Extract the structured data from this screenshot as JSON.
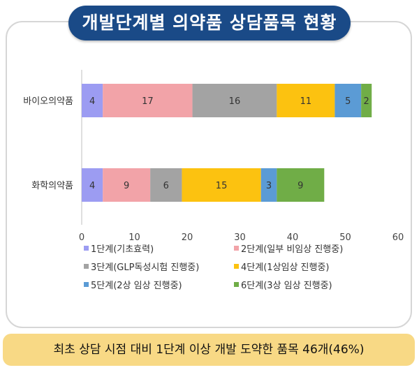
{
  "header": {
    "title": "개발단계별 의약품 상담품목 현황"
  },
  "footer": {
    "summary": "최초 상담 시점 대비 1단계 이상 개발 도약한 품목 46개(46%)"
  },
  "chart_data": {
    "type": "bar",
    "orientation": "horizontal",
    "stacked": true,
    "categories": [
      "바이오의약품",
      "화학의약품"
    ],
    "series": [
      {
        "name": "1단계(기초효력)",
        "color": "#9c9cf2",
        "values": [
          4,
          4
        ]
      },
      {
        "name": "2단계(일부 비임상 진행중)",
        "color": "#f2a3a8",
        "values": [
          17,
          9
        ]
      },
      {
        "name": "3단계(GLP독성시험 진행중)",
        "color": "#a3a3a3",
        "values": [
          16,
          6
        ]
      },
      {
        "name": "4단계(1상임상 진행중)",
        "color": "#fcc210",
        "values": [
          11,
          15
        ]
      },
      {
        "name": "5단계(2상 임상 진행중)",
        "color": "#5b9bd5",
        "values": [
          5,
          3
        ]
      },
      {
        "name": "6단계(3상 임상 진행중)",
        "color": "#70ad47",
        "values": [
          2,
          9
        ]
      }
    ],
    "xlim": [
      0,
      60
    ],
    "xticks": [
      0,
      10,
      20,
      30,
      40,
      50,
      60
    ],
    "data_labels": true,
    "legend_position": "bottom",
    "grid": false
  }
}
